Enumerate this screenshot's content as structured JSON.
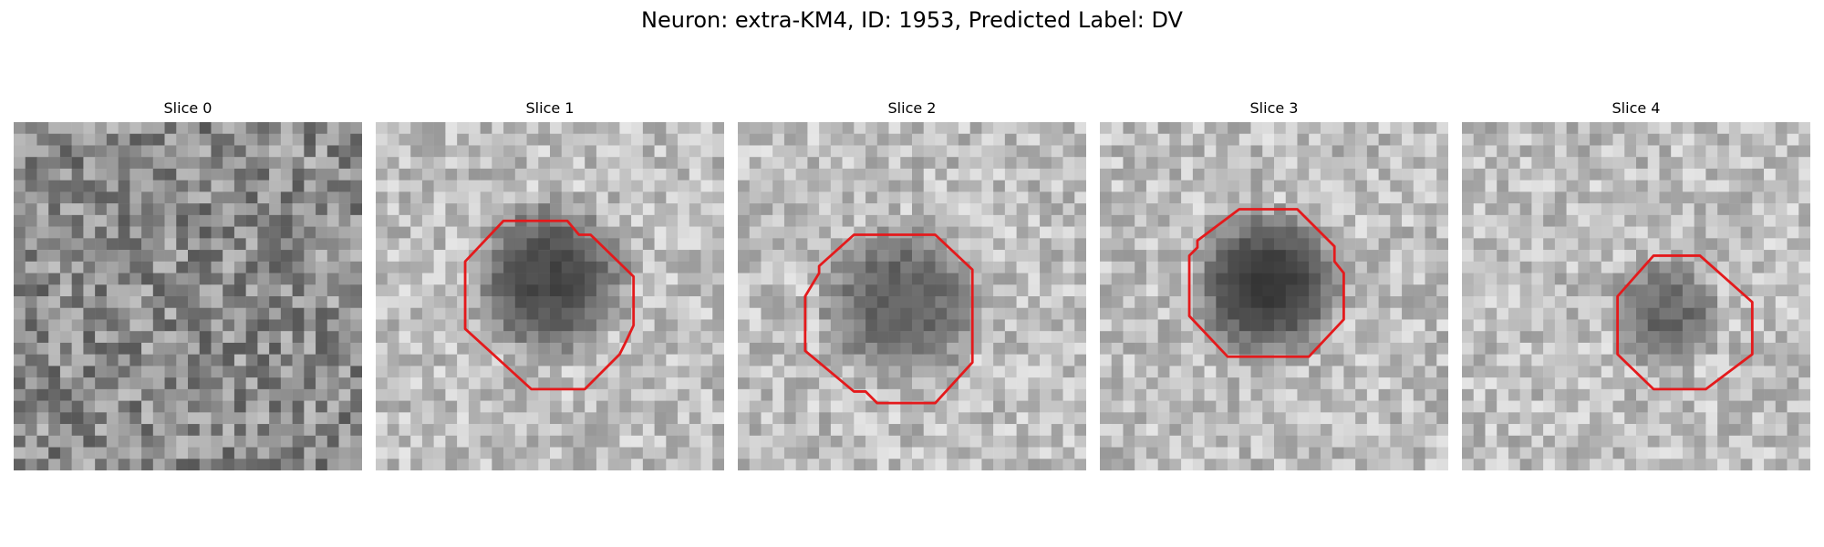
{
  "figure": {
    "title": "Neuron: extra-KM4, ID: 1953, Predicted Label: DV"
  },
  "colors": {
    "contour": "#e41a1c",
    "background": "#ffffff"
  },
  "slices": [
    {
      "title": "Slice 0",
      "has_contour": false,
      "dark_blob_strength": 0.0
    },
    {
      "title": "Slice 1",
      "has_contour": true,
      "dark_blob_strength": 0.75
    },
    {
      "title": "Slice 2",
      "has_contour": true,
      "dark_blob_strength": 0.6
    },
    {
      "title": "Slice 3",
      "has_contour": true,
      "dark_blob_strength": 0.85
    },
    {
      "title": "Slice 4",
      "has_contour": true,
      "dark_blob_strength": 0.55
    }
  ]
}
